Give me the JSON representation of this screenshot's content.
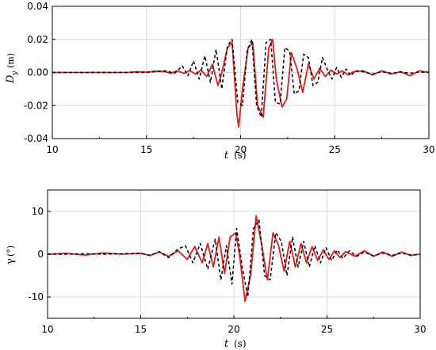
{
  "chart_data": [
    {
      "type": "line",
      "xlabel_main": "t",
      "xlabel_unit": "(s)",
      "ylabel_main": "D",
      "ylabel_sub": "y",
      "ylabel_unit": "(m)",
      "xlim": [
        10,
        30
      ],
      "ylim": [
        -0.04,
        0.04
      ],
      "xticks": [
        10,
        15,
        20,
        25,
        30
      ],
      "xtick_labels": [
        "10",
        "15",
        "20",
        "25",
        "30"
      ],
      "yticks": [
        -0.04,
        -0.02,
        0.0,
        0.02,
        0.04
      ],
      "ytick_labels": [
        "-0.04",
        "-0.02",
        "0.00",
        "0.02",
        "0.04"
      ],
      "grid": true,
      "series": [
        {
          "style": "solid",
          "color": "#e41a1c",
          "x": [
            10,
            11,
            12,
            13,
            14,
            14.5,
            15,
            15.5,
            16,
            16.3,
            16.6,
            17,
            17.3,
            17.6,
            17.9,
            18.2,
            18.5,
            18.8,
            19.0,
            19.3,
            19.55,
            19.8,
            19.9,
            20.1,
            20.4,
            20.65,
            20.9,
            21.2,
            21.5,
            21.7,
            21.9,
            22.2,
            22.45,
            22.7,
            23.0,
            23.3,
            23.6,
            23.9,
            24.2,
            24.5,
            24.8,
            25.1,
            25.4,
            25.7,
            26.0,
            26.5,
            27,
            27.5,
            28,
            28.5,
            29,
            29.5,
            30
          ],
          "y": [
            0,
            0,
            0,
            0,
            0,
            0.0005,
            0.0002,
            0.0008,
            0.0005,
            -0.0005,
            0.001,
            -0.0005,
            0.0012,
            -0.001,
            0.0015,
            -0.0025,
            0.005,
            -0.008,
            0.0,
            0.015,
            0.018,
            -0.025,
            -0.033,
            -0.01,
            0.015,
            0.018,
            -0.02,
            -0.027,
            0.015,
            0.02,
            -0.004,
            -0.021,
            -0.016,
            0.012,
            0.002,
            -0.012,
            0.005,
            -0.004,
            0.0025,
            -0.0025,
            0.0015,
            -0.001,
            0.001,
            -0.0015,
            0.0005,
            0.001,
            -0.0015,
            0.001,
            -0.001,
            0.0005,
            -0.002,
            0.001,
            0
          ]
        },
        {
          "style": "dashed",
          "color": "#000000",
          "x": [
            10,
            11,
            12,
            13,
            14,
            15,
            15.5,
            16,
            16.5,
            16.9,
            17.2,
            17.5,
            17.8,
            18.1,
            18.4,
            18.7,
            19.0,
            19.3,
            19.55,
            19.85,
            20.1,
            20.35,
            20.6,
            20.85,
            21.1,
            21.35,
            21.6,
            21.85,
            22.1,
            22.35,
            22.6,
            22.85,
            23.1,
            23.35,
            23.6,
            23.85,
            24.1,
            24.35,
            24.6,
            24.85,
            25.1,
            25.35,
            25.6,
            25.85,
            26.1,
            26.5,
            27,
            27.5,
            28,
            28.5,
            29,
            29.5,
            30
          ],
          "y": [
            0,
            0,
            0,
            0,
            0,
            0,
            0.0005,
            0.001,
            -0.0005,
            0.004,
            -0.002,
            0.007,
            -0.004,
            0.01,
            -0.006,
            0.014,
            -0.01,
            0.016,
            0.02,
            -0.018,
            -0.02,
            0.013,
            0.02,
            -0.02,
            -0.027,
            0.018,
            0.02,
            -0.018,
            -0.019,
            0.015,
            0.013,
            -0.013,
            -0.011,
            0.011,
            0.009,
            -0.008,
            -0.006,
            0.009,
            0.002,
            -0.004,
            0.003,
            -0.003,
            0.002,
            -0.002,
            0.001,
            0.0005,
            -0.001,
            0.0005,
            -0.0005,
            0.0003,
            -0.0005,
            0.0003,
            0
          ]
        }
      ]
    },
    {
      "type": "line",
      "xlabel_main": "t",
      "xlabel_unit": "(s)",
      "ylabel_main": "γ",
      "ylabel_unit": "(°)",
      "xlim": [
        10,
        30
      ],
      "ylim": [
        -15,
        15
      ],
      "xticks": [
        10,
        15,
        20,
        25,
        30
      ],
      "xtick_labels": [
        "10",
        "15",
        "20",
        "25",
        "30"
      ],
      "yticks": [
        -10,
        0,
        10
      ],
      "ytick_labels": [
        "-10",
        "0",
        "10"
      ],
      "grid": true,
      "series": [
        {
          "style": "solid",
          "color": "#e41a1c",
          "x": [
            10,
            11,
            12,
            13,
            14,
            15,
            15.5,
            16,
            16.5,
            17,
            17.5,
            17.9,
            18.3,
            18.6,
            18.9,
            19.2,
            19.5,
            19.8,
            20.1,
            20.3,
            20.6,
            20.9,
            21.2,
            21.5,
            21.8,
            22.1,
            22.4,
            22.7,
            23.0,
            23.3,
            23.6,
            23.9,
            24.2,
            24.5,
            24.8,
            25.1,
            25.4,
            25.7,
            26.0,
            26.5,
            27,
            27.5,
            28,
            28.5,
            29,
            29.5,
            30
          ],
          "y": [
            0,
            0.2,
            -0.2,
            0.3,
            0,
            0.2,
            -0.3,
            0.5,
            -0.5,
            0.8,
            -1.2,
            1.8,
            -2,
            2.5,
            -3,
            4,
            -4.5,
            4,
            5,
            0,
            -11,
            -5,
            9,
            2,
            -6,
            5,
            2,
            -4,
            3,
            -3,
            2.5,
            -2,
            1.8,
            -1.5,
            1,
            -1.2,
            0.8,
            -0.8,
            0.6,
            -0.5,
            0.8,
            -0.5,
            0.5,
            -0.5,
            0.5,
            -0.3,
            0
          ]
        },
        {
          "style": "dashed",
          "color": "#000000",
          "x": [
            10,
            11,
            12,
            13,
            14,
            15,
            15.5,
            16,
            16.5,
            17,
            17.4,
            17.8,
            18.2,
            18.6,
            19.0,
            19.3,
            19.6,
            19.9,
            20.15,
            20.45,
            20.75,
            21.05,
            21.35,
            21.65,
            21.95,
            22.25,
            22.55,
            22.85,
            23.15,
            23.45,
            23.75,
            24.05,
            24.35,
            24.65,
            24.95,
            25.25,
            25.55,
            25.85,
            26.2,
            26.6,
            27,
            27.5,
            28,
            28.5,
            29,
            29.5,
            30
          ],
          "y": [
            0,
            0,
            0.1,
            0,
            0.1,
            0.2,
            -0.3,
            0.6,
            -0.8,
            1.2,
            2,
            -2,
            2.5,
            -3.5,
            3.5,
            -6,
            2,
            -7,
            6,
            -3,
            -10,
            6,
            8,
            -5,
            -6,
            5,
            3,
            -5,
            4,
            -3,
            3,
            -3,
            2,
            -2,
            1.5,
            -1.5,
            1,
            -1,
            0.8,
            -0.5,
            0.5,
            -0.4,
            0.3,
            -0.3,
            0.3,
            -0.2,
            0
          ]
        }
      ]
    }
  ]
}
